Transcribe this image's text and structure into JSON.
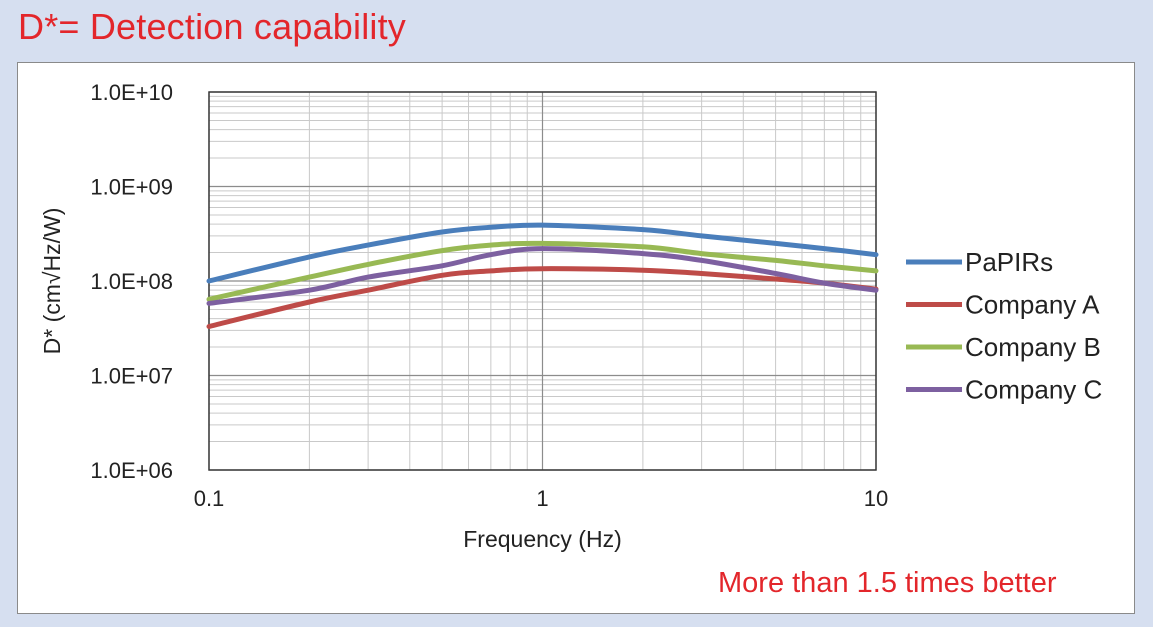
{
  "header": {
    "title": "D*= Detection capability"
  },
  "footer": {
    "note": "More than 1.5 times better"
  },
  "colors": {
    "background": "#d6dff0",
    "accent_red": "#e3262b",
    "PaPIRs": "#4a7ebb",
    "Company A": "#be4b48",
    "Company B": "#98b954",
    "Company C": "#7d60a0"
  },
  "chart_data": {
    "type": "line",
    "title": "",
    "xlabel": "Frequency (Hz)",
    "ylabel": "D* (cm√Hz/W)",
    "x_scale": "log",
    "y_scale": "log",
    "xlim": [
      0.1,
      10
    ],
    "ylim": [
      1000000,
      10000000000
    ],
    "x_ticks": [
      "0.1",
      "1",
      "10"
    ],
    "y_ticks": [
      "1.0E+06",
      "1.0E+07",
      "1.0E+08",
      "1.0E+09",
      "1.0E+10"
    ],
    "grid": true,
    "legend_position": "right",
    "x": [
      0.1,
      0.2,
      0.3,
      0.5,
      0.7,
      1,
      2,
      3,
      5,
      7,
      10
    ],
    "series": [
      {
        "name": "PaPIRs",
        "values": [
          100000000,
          180000000,
          240000000,
          330000000,
          370000000,
          390000000,
          350000000,
          300000000,
          250000000,
          220000000,
          190000000
        ]
      },
      {
        "name": "Company A",
        "values": [
          33000000,
          60000000,
          80000000,
          115000000,
          128000000,
          135000000,
          130000000,
          120000000,
          105000000,
          95000000,
          82000000
        ]
      },
      {
        "name": "Company B",
        "values": [
          64000000,
          110000000,
          150000000,
          210000000,
          240000000,
          250000000,
          230000000,
          195000000,
          165000000,
          145000000,
          128000000
        ]
      },
      {
        "name": "Company C",
        "values": [
          58000000,
          80000000,
          110000000,
          145000000,
          190000000,
          220000000,
          195000000,
          165000000,
          120000000,
          95000000,
          80000000
        ]
      }
    ]
  }
}
